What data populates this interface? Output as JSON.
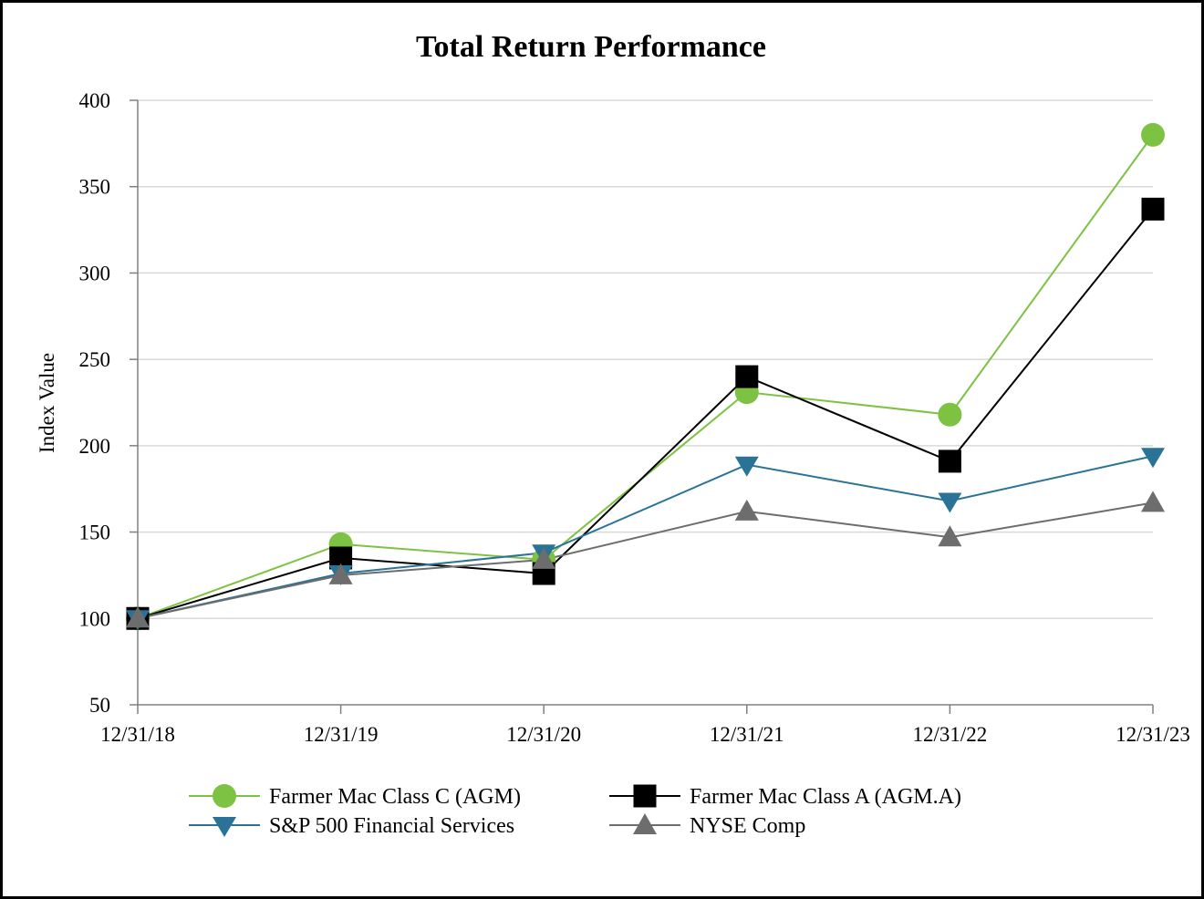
{
  "chart_data": {
    "type": "line",
    "title": "Total Return Performance",
    "xlabel": "",
    "ylabel": "Index Value",
    "categories": [
      "12/31/18",
      "12/31/19",
      "12/31/20",
      "12/31/21",
      "12/31/22",
      "12/31/23"
    ],
    "ylim": [
      50,
      400
    ],
    "yticks": [
      50,
      100,
      150,
      200,
      250,
      300,
      350,
      400
    ],
    "grid": true,
    "legend_position": "bottom",
    "series": [
      {
        "name": "Farmer Mac Class C (AGM)",
        "values": [
          100,
          143,
          134,
          231,
          218,
          380
        ],
        "color": "#7dc242",
        "marker": "circle"
      },
      {
        "name": "Farmer Mac Class A (AGM.A)",
        "values": [
          100,
          135,
          126,
          240,
          191,
          337
        ],
        "color": "#000000",
        "marker": "square"
      },
      {
        "name": "S&P 500 Financial Services",
        "values": [
          100,
          126,
          138,
          189,
          168,
          194
        ],
        "color": "#2a7396",
        "marker": "triangle-down"
      },
      {
        "name": "NYSE Comp",
        "values": [
          100,
          125,
          134,
          162,
          147,
          167
        ],
        "color": "#6d6d6d",
        "marker": "triangle-up"
      }
    ]
  }
}
